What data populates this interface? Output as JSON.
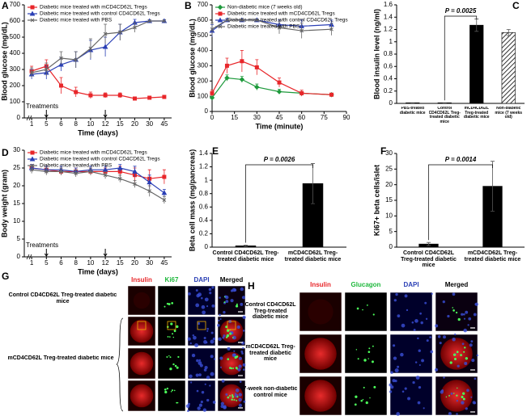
{
  "chart_data": [
    {
      "type": "line",
      "letter": "A",
      "ylabel": "Blood glucose (mg/dL)",
      "xlabel": "Time (days)",
      "categories": [
        "1",
        "5",
        "6",
        "8",
        "10",
        "12",
        "15",
        "20",
        "30",
        "45"
      ],
      "ylim": [
        0,
        700
      ],
      "yticks": [
        0,
        100,
        200,
        300,
        400,
        500,
        600,
        700
      ],
      "legend": "upper left",
      "annotation": "Treatments",
      "treatment_days": [
        "5",
        "12"
      ],
      "series": [
        {
          "name": "Diabetic mice treated with mCD4CD62L Tregs",
          "color": "#e8262a",
          "marker": "square",
          "values": [
            290,
            320,
            200,
            160,
            140,
            140,
            140,
            120,
            125,
            130
          ],
          "errors": [
            30,
            40,
            50,
            30,
            20,
            15,
            15,
            10,
            10,
            10
          ]
        },
        {
          "name": "Diabetic mice treated with control CD4CD62L Tregs",
          "color": "#2a3fb5",
          "marker": "triangle",
          "values": [
            270,
            280,
            330,
            360,
            420,
            440,
            530,
            590,
            600,
            600
          ],
          "errors": [
            30,
            40,
            40,
            50,
            60,
            60,
            50,
            20,
            0,
            0
          ]
        },
        {
          "name": "Diabetic mice treated with PBS",
          "color": "#666666",
          "marker": "x",
          "values": [
            280,
            300,
            370,
            360,
            430,
            520,
            530,
            560,
            600,
            600
          ],
          "errors": [
            30,
            40,
            40,
            50,
            60,
            60,
            50,
            30,
            0,
            0
          ]
        }
      ]
    },
    {
      "type": "line",
      "letter": "B",
      "ylabel": "Blood glucose (mg/dL)",
      "xlabel": "Time (minute)",
      "xlim": [
        0,
        90
      ],
      "xticks": [
        0,
        15,
        30,
        45,
        60,
        75,
        90
      ],
      "ylim": [
        0,
        700
      ],
      "yticks": [
        0,
        100,
        200,
        300,
        400,
        500,
        600,
        700
      ],
      "legend": "upper left",
      "series": [
        {
          "name": "Non-diabetic mice (7 weeks old)",
          "color": "#1e9a3c",
          "marker": "diamond",
          "x": [
            0,
            10,
            20,
            30,
            45,
            60,
            80
          ],
          "values": [
            90,
            220,
            210,
            160,
            130,
            120,
            110
          ],
          "errors": [
            10,
            20,
            20,
            20,
            15,
            10,
            10
          ]
        },
        {
          "name": "Diabetic mice treated with mCD4CD62L Tregs",
          "color": "#e8262a",
          "marker": "square",
          "x": [
            0,
            10,
            20,
            30,
            45,
            60,
            80
          ],
          "values": [
            120,
            300,
            330,
            290,
            190,
            120,
            110
          ],
          "errors": [
            20,
            50,
            70,
            50,
            30,
            20,
            10
          ]
        },
        {
          "name": "Diabetic mice treated with control CD4CD62L Tregs",
          "color": "#2a3fb5",
          "marker": "triangle",
          "x": [
            0,
            10,
            20,
            30,
            45,
            60,
            80
          ],
          "values": [
            530,
            600,
            600,
            600,
            570,
            560,
            570
          ],
          "errors": [
            40,
            0,
            0,
            0,
            30,
            40,
            30
          ]
        },
        {
          "name": "Diabetic mice treated with PBS",
          "color": "#666666",
          "marker": "x",
          "x": [
            0,
            10,
            20,
            30,
            45,
            60,
            80
          ],
          "values": [
            540,
            600,
            600,
            600,
            550,
            530,
            540
          ],
          "errors": [
            40,
            0,
            0,
            0,
            40,
            50,
            40
          ]
        }
      ]
    },
    {
      "type": "bar",
      "letter": "C",
      "ylabel": "Blood insulin level (ng/ml)",
      "categories": [
        "PBS-treated diabetic mice",
        "Control CD4CD62L Treg-treated diabetic mice",
        "mCD4CD62L Treg-treated diabetic mice",
        "Non-diabetic mice (7 weeks old)"
      ],
      "values": [
        0.01,
        0.01,
        1.27,
        1.15
      ],
      "errors": [
        0,
        0,
        0.1,
        0.05
      ],
      "colors": [
        "#000000",
        "#000000",
        "#000000",
        "#ffffff"
      ],
      "hatched": [
        false,
        false,
        false,
        true
      ],
      "ylim": [
        0,
        1.6
      ],
      "yticks": [
        0,
        0.2,
        0.4,
        0.6,
        0.8,
        1,
        1.2,
        1.4,
        1.6
      ],
      "annotation": "P = 0.0025"
    },
    {
      "type": "line",
      "letter": "D",
      "ylabel": "Body weight (gram)",
      "xlabel": "Time (days)",
      "categories": [
        "1",
        "5",
        "6",
        "8",
        "10",
        "12",
        "15",
        "20",
        "30",
        "45"
      ],
      "ylim": [
        0,
        30
      ],
      "yticks": [
        0,
        5,
        10,
        15,
        20,
        25,
        30
      ],
      "legend": "upper left",
      "annotation": "Treatments",
      "treatment_days": [
        "5",
        "12"
      ],
      "series": [
        {
          "name": "Diabetic mice treated with mCD4CD62L Tregs",
          "color": "#e8262a",
          "marker": "square",
          "values": [
            25,
            24.5,
            24,
            24,
            24,
            24,
            24,
            23,
            22,
            22.5
          ],
          "errors": [
            1,
            1,
            1,
            1,
            1,
            1,
            1.5,
            2,
            2.5,
            2
          ]
        },
        {
          "name": "Diabetic mice treated with control CD4CD62L Tregs",
          "color": "#2a3fb5",
          "marker": "triangle",
          "values": [
            25,
            24.5,
            24.5,
            24,
            24.5,
            24.5,
            25,
            24,
            21,
            18
          ],
          "errors": [
            1,
            1,
            1,
            1,
            1,
            1,
            1,
            1.5,
            2,
            1
          ]
        },
        {
          "name": "Diabetic mice treated with PBS",
          "color": "#666666",
          "marker": "x",
          "values": [
            24.5,
            24,
            24,
            23.5,
            24,
            23,
            22,
            20.5,
            18.5,
            16
          ],
          "errors": [
            1,
            1,
            1,
            1,
            1,
            1,
            1,
            1,
            1.5,
            1
          ]
        }
      ]
    },
    {
      "type": "bar",
      "letter": "E",
      "ylabel": "Beta cell mass (mg/pancreas)",
      "categories": [
        "Control CD4CD62L Treg-treated diabetic mice",
        "mCD4CD62L Treg-treated diabetic mice"
      ],
      "values": [
        0.02,
        0.95
      ],
      "errors": [
        0.01,
        0.3
      ],
      "colors": [
        "#000000",
        "#000000"
      ],
      "hatched": [
        false,
        false
      ],
      "ylim": [
        0,
        1.4
      ],
      "yticks": [
        0,
        0.2,
        0.4,
        0.6,
        0.8,
        1,
        1.2,
        1.4
      ],
      "annotation": "P = 0.0026"
    },
    {
      "type": "bar",
      "letter": "F",
      "ylabel": "Ki67+ beta cells/islet",
      "categories": [
        "Control CD4CD62L Treg-treated diabetic mice",
        "mCD4CD62L Treg-treated diabetic mice"
      ],
      "values": [
        1,
        19.5
      ],
      "errors": [
        0.5,
        8
      ],
      "colors": [
        "#000000",
        "#000000"
      ],
      "hatched": [
        false,
        false
      ],
      "ylim": [
        0,
        30
      ],
      "yticks": [
        0,
        5,
        10,
        15,
        20,
        25,
        30
      ],
      "annotation": "P = 0.0014"
    }
  ],
  "panels": [
    {
      "letter": "G",
      "columns": [
        "Insulin",
        "Ki67",
        "DAPI",
        "Merged"
      ],
      "column_colors": [
        "#e8262a",
        "#1eb83c",
        "#2a3fb5",
        "#000000"
      ],
      "rows": [
        "Control CD4CD62L Treg-treated diabetic mice",
        "mCD4CD62L Treg-treated diabetic mice"
      ]
    },
    {
      "letter": "H",
      "columns": [
        "Insulin",
        "Glucagon",
        "DAPI",
        "Merged"
      ],
      "column_colors": [
        "#e8262a",
        "#1eb83c",
        "#2a3fb5",
        "#000000"
      ],
      "rows": [
        "Control CD4CD62L Treg-treated diabetic mice",
        "mCD4CD62L Treg-treated diabetic mice",
        "7-week non-diabetic control mice"
      ]
    }
  ]
}
